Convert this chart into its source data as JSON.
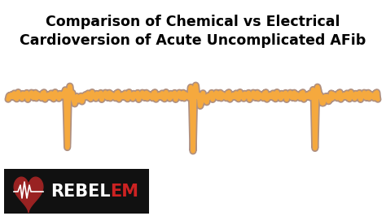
{
  "title_line1": "Comparison of Chemical vs Electrical",
  "title_line2": "Cardioversion of Acute Uncomplicated AFib",
  "title_fontsize": 12.5,
  "title_fontweight": "bold",
  "bg_color": "#ffffff",
  "ecg_fill_color": "#f5a93e",
  "ecg_outline_color": "#b09080",
  "ecg_linewidth_outer": 6.5,
  "ecg_linewidth_inner": 4.0,
  "logo_bg": "#111111",
  "logo_rebel_color": "#ffffff",
  "logo_em_color": "#cc2222",
  "logo_fontsize": 15,
  "logo_heart_color": "#992222",
  "logo_heart_light": "#cc3333"
}
